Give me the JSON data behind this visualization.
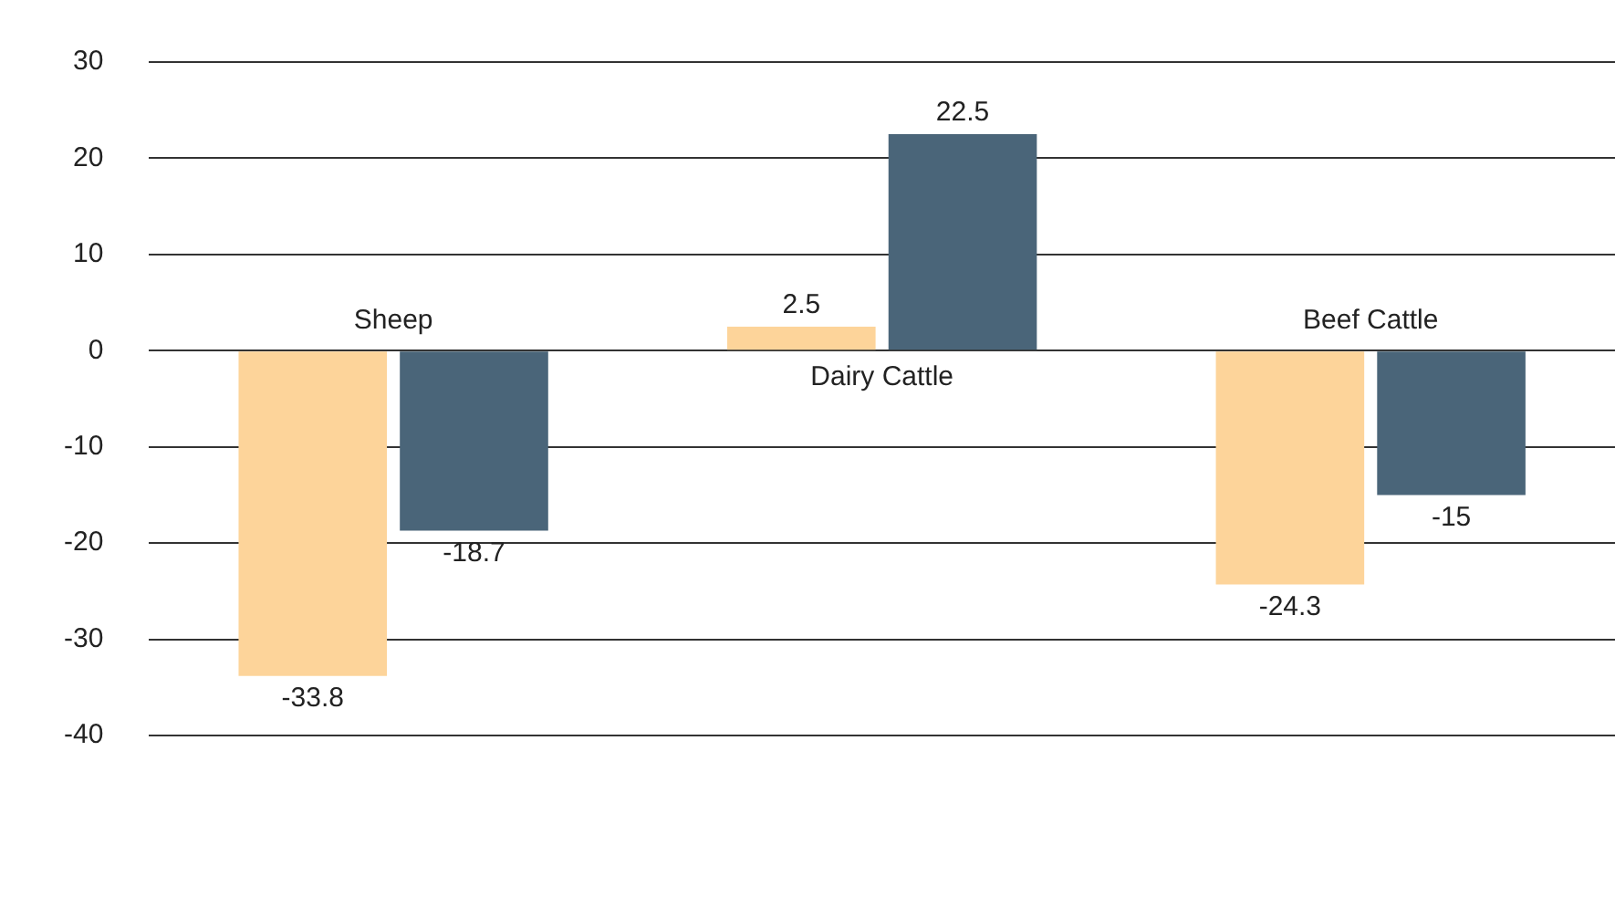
{
  "chart_data": {
    "type": "bar",
    "categories": [
      "Sheep",
      "Dairy Cattle",
      "Beef Cattle"
    ],
    "series": [
      {
        "color": "#fdd49a",
        "values": [
          -33.8,
          2.5,
          -24.3
        ]
      },
      {
        "color": "#4a6579",
        "values": [
          -18.7,
          22.5,
          -15
        ]
      }
    ],
    "ylim": [
      -40,
      30
    ],
    "yticks": [
      -40,
      -30,
      -20,
      -10,
      0,
      10,
      20,
      30
    ],
    "grid": "y",
    "data_labels": true,
    "legend": false
  }
}
